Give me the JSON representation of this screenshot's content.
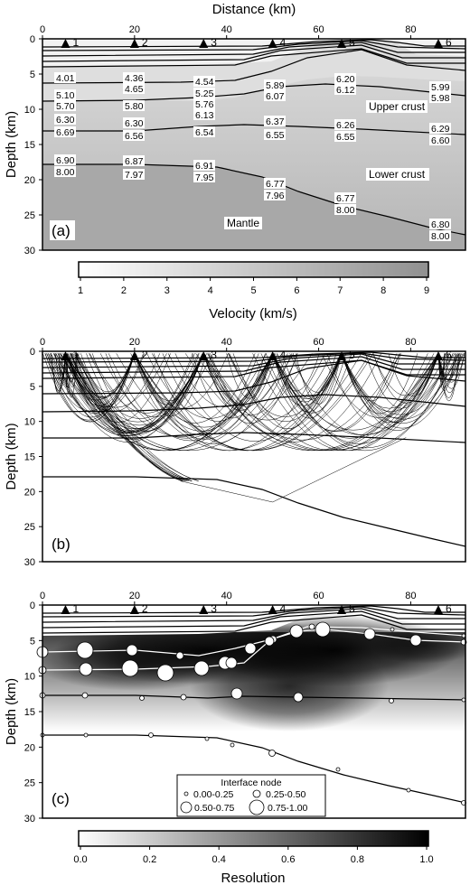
{
  "figure": {
    "x_axis_title": "Distance (km)",
    "y_axis_title": "Depth (km)",
    "x_ticks": [
      "0",
      "20",
      "40",
      "60",
      "80"
    ],
    "y_ticks": [
      "0",
      "5",
      "10",
      "15",
      "20",
      "25",
      "30"
    ],
    "stations": [
      "1",
      "2",
      "3",
      "4",
      "5",
      "6"
    ]
  },
  "panel_a": {
    "label": "(a)",
    "layer_labels": {
      "upper_crust": "Upper crust",
      "lower_crust": "Lower crust",
      "mantle": "Mantle"
    },
    "velocity_labels": [
      "4.01",
      "4.36",
      "4.54",
      "6.20",
      "5.99",
      "5.10",
      "4.65",
      "5.25",
      "5.89",
      "6.12",
      "5.98",
      "5.70",
      "5.80",
      "5.76",
      "6.07",
      "6.13",
      "6.30",
      "6.30",
      "6.37",
      "6.26",
      "6.29",
      "6.69",
      "6.56",
      "6.54",
      "6.55",
      "6.55",
      "6.60",
      "6.90",
      "6.87",
      "6.91",
      "8.00",
      "7.97",
      "7.95",
      "6.77",
      "7.96",
      "6.77",
      "8.00",
      "6.80",
      "8.00"
    ],
    "colorbar": {
      "title": "Velocity (km/s)",
      "ticks": [
        "1",
        "2",
        "3",
        "4",
        "5",
        "6",
        "7",
        "8",
        "9"
      ]
    }
  },
  "panel_b": {
    "label": "(b)"
  },
  "panel_c": {
    "label": "(c)",
    "legend": {
      "title": "Interface node",
      "items": [
        "0.00-0.25",
        "0.25-0.50",
        "0.50-0.75",
        "0.75-1.00"
      ]
    },
    "colorbar": {
      "title": "Resolution",
      "ticks": [
        "0.0",
        "0.2",
        "0.4",
        "0.6",
        "0.8",
        "1.0"
      ]
    }
  },
  "colors": {
    "mantle": "#a6a6a6",
    "upper": "#d2d2d2",
    "ink": "#000000"
  }
}
